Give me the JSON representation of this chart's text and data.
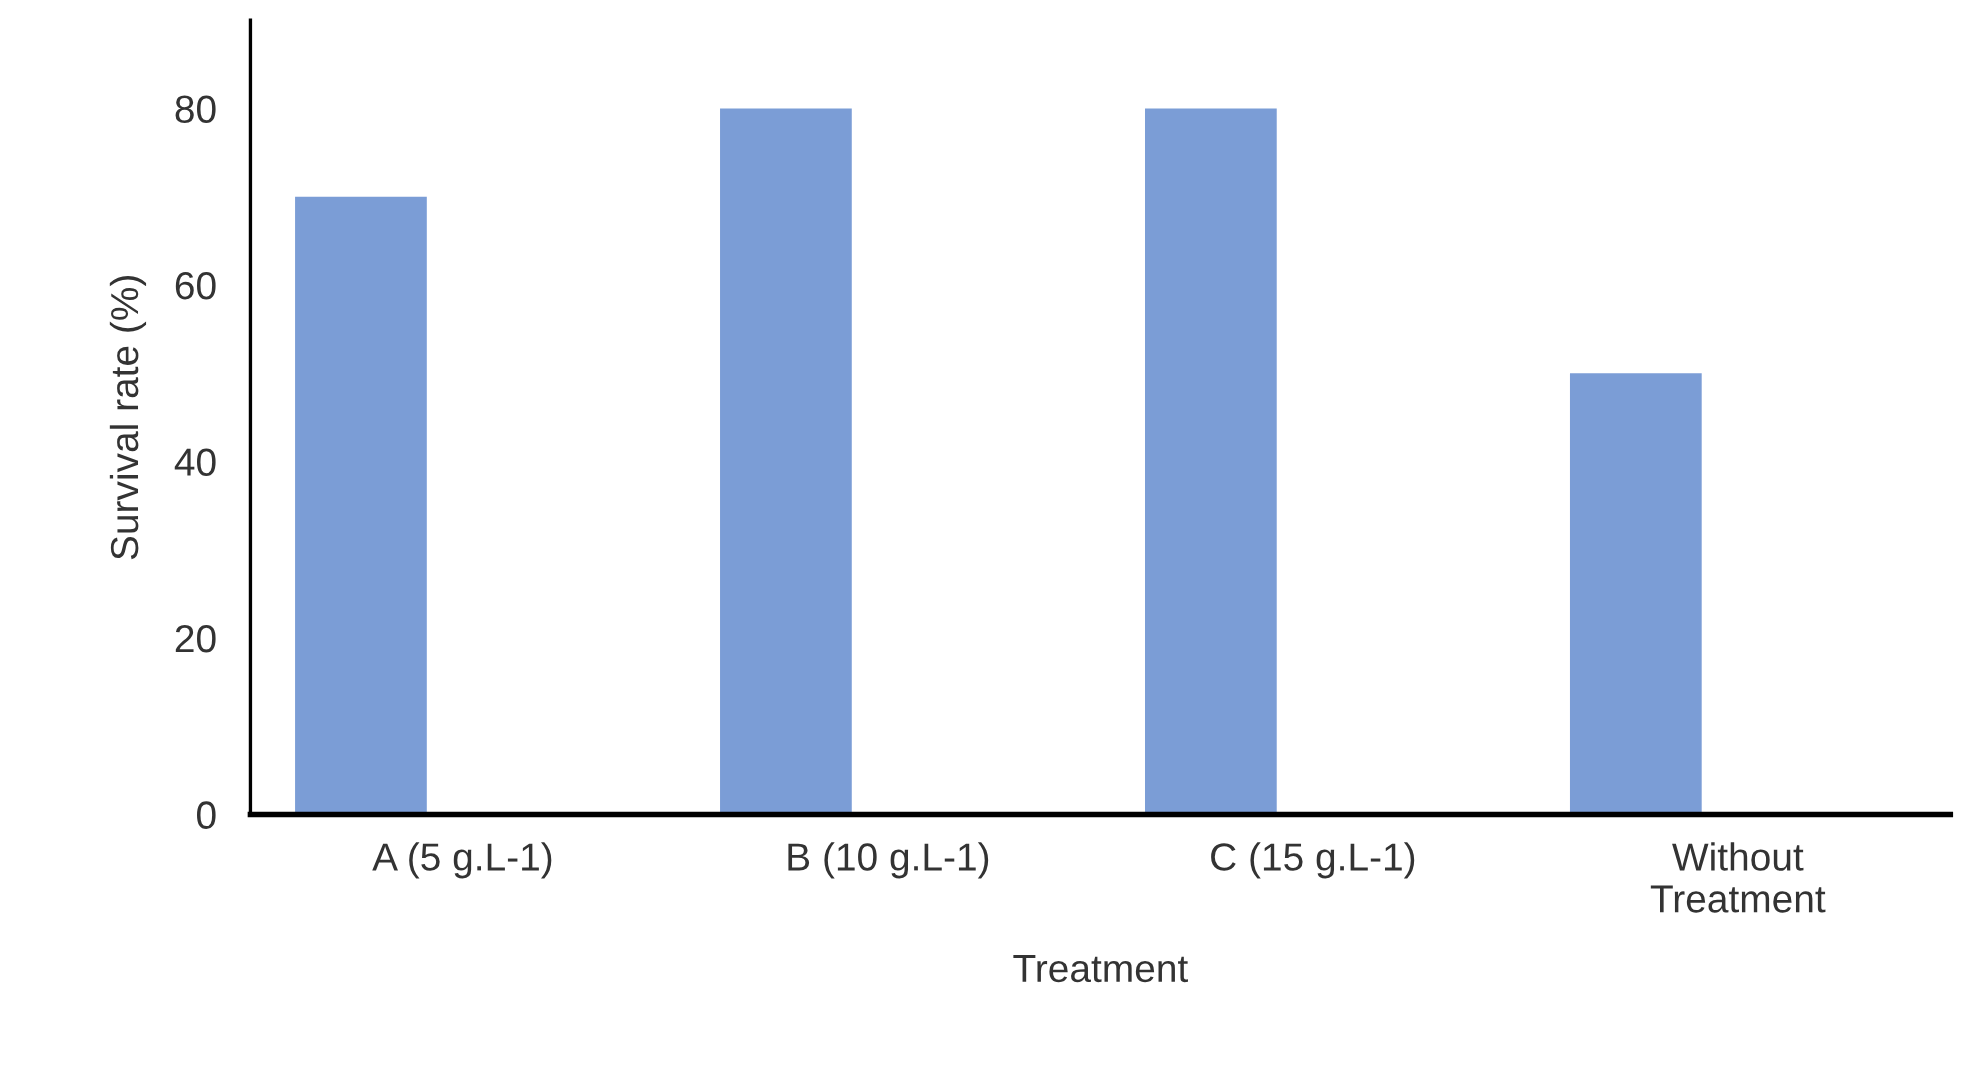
{
  "chart_data": {
    "type": "bar",
    "xlabel": "Treatment",
    "ylabel": "Survival rate (%)",
    "categories": [
      "A (5 g.L-1)",
      "B (10 g.L-1)",
      "C (15 g.L-1)",
      "Without\nTreatment"
    ],
    "values": [
      70,
      80,
      80,
      50
    ],
    "color": "#7b9dd6",
    "ylim": [
      0,
      90
    ],
    "yticks": [
      0,
      20,
      40,
      60,
      80
    ],
    "grid": false,
    "legend": false
  }
}
